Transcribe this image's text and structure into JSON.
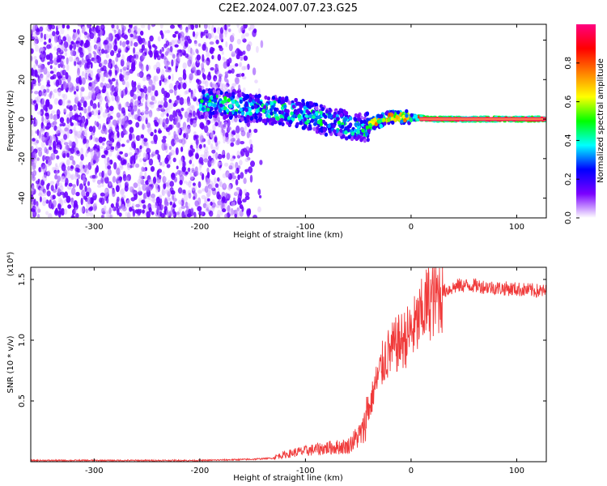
{
  "title": "C2E2.2024.007.07.23.G25",
  "colors": {
    "snr_line": "#f03a3a",
    "axis": "#000000"
  },
  "chart_data": [
    {
      "type": "heatmap",
      "xlabel": "Height of straight line (km)",
      "ylabel": "Frequency (Hz)",
      "xlim": [
        -360,
        128
      ],
      "ylim": [
        -50,
        48
      ],
      "x_ticks": [
        -300,
        -200,
        -100,
        0,
        100
      ],
      "y_ticks": [
        -40,
        -20,
        0,
        20,
        40
      ],
      "colorbar": {
        "label": "Normalized spectral amplitude",
        "range": [
          0.0,
          1.0
        ],
        "ticks": [
          "0.0",
          "0.2",
          "0.4",
          "0.6",
          "0.8"
        ],
        "colormap": [
          "#ffffff",
          "#7a00ff",
          "#0000ff",
          "#00ffff",
          "#00ff00",
          "#ffff00",
          "#ff8000",
          "#ff0000",
          "#ff0080"
        ]
      },
      "trace": {
        "height_km": [
          -200,
          -180,
          -160,
          -140,
          -120,
          -100,
          -80,
          -60,
          -45,
          -35,
          -20,
          0,
          20,
          60,
          100,
          128
        ],
        "frequency_hz": [
          8,
          8,
          6,
          5,
          4,
          2,
          -1,
          -3,
          -5,
          -2,
          1,
          1,
          0,
          0,
          0,
          0
        ]
      }
    },
    {
      "type": "line",
      "xlabel": "Height of straight line (km)",
      "ylabel": "SNR (10 * v/v)",
      "y_multiplier": "(x10⁴)",
      "xlim": [
        -360,
        128
      ],
      "ylim": [
        0,
        1.6
      ],
      "x_ticks": [
        -300,
        -200,
        -100,
        0,
        100
      ],
      "y_ticks": [
        "0.5",
        "1.0",
        "1.5"
      ],
      "y_tick_values": [
        0.5,
        1.0,
        1.5
      ],
      "envelope": {
        "x": [
          -360,
          -250,
          -200,
          -150,
          -130,
          -110,
          -100,
          -80,
          -60,
          -45,
          -35,
          -25,
          -15,
          -5,
          5,
          15,
          30,
          45,
          60,
          80,
          100,
          128
        ],
        "y": [
          0.01,
          0.01,
          0.01,
          0.02,
          0.03,
          0.06,
          0.07,
          0.09,
          0.1,
          0.2,
          0.6,
          0.85,
          0.95,
          1.02,
          1.12,
          1.3,
          1.4,
          1.45,
          1.45,
          1.43,
          1.42,
          1.4
        ]
      }
    }
  ]
}
